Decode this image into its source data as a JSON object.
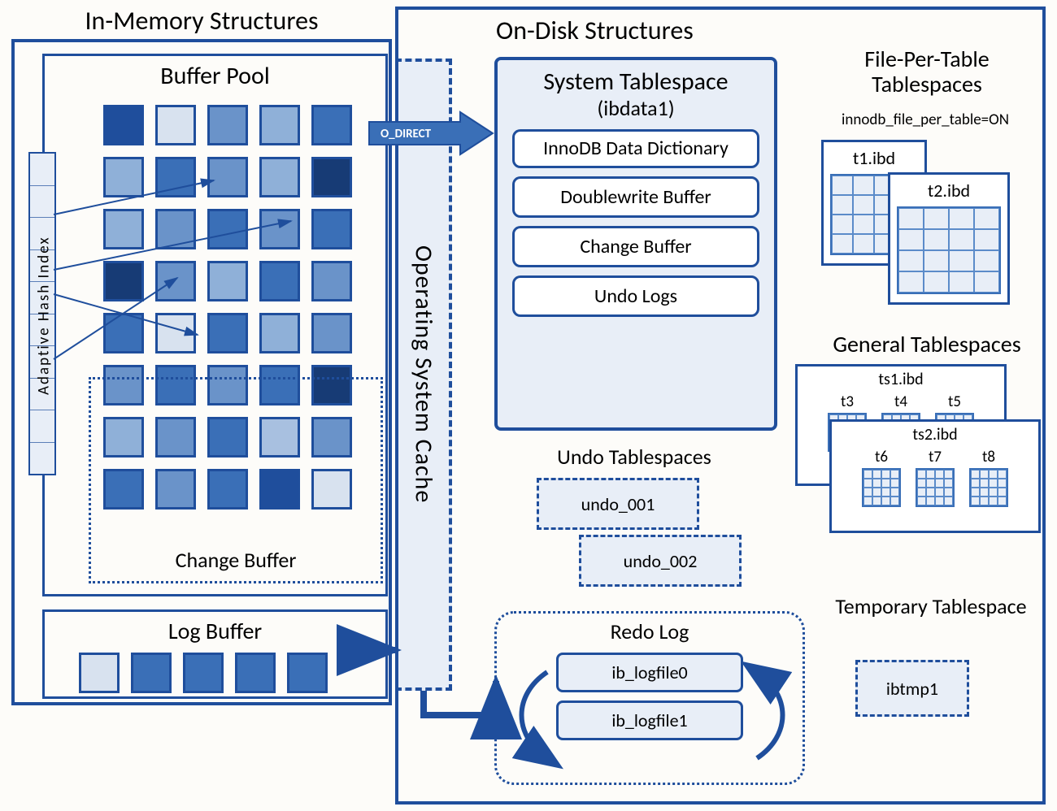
{
  "colors": {
    "border": "#1f4e9c",
    "light_fill": "#e8eef7",
    "bg": "#fdfcf9",
    "cell_variants": [
      "#d8e2ef",
      "#a8c0e0",
      "#6a93c9",
      "#3a6fb7",
      "#1f4e9c",
      "#173b75"
    ]
  },
  "in_memory": {
    "title": "In-Memory Structures",
    "buffer_pool": {
      "title": "Buffer Pool",
      "grid": [
        [
          "#1f4e9c",
          "#d8e2ef",
          "#6a93c9",
          "#8fb0d8",
          "#3a6fb7"
        ],
        [
          "#8fb0d8",
          "#3a6fb7",
          "#6a93c9",
          "#8fb0d8",
          "#173b75"
        ],
        [
          "#8fb0d8",
          "#6a93c9",
          "#3a6fb7",
          "#6a93c9",
          "#3a6fb7"
        ],
        [
          "#173b75",
          "#6a93c9",
          "#8fb0d8",
          "#3a6fb7",
          "#6a93c9"
        ],
        [
          "#3a6fb7",
          "#d8e2ef",
          "#3a6fb7",
          "#8fb0d8",
          "#6a93c9"
        ],
        [
          "#6a93c9",
          "#3a6fb7",
          "#6a93c9",
          "#3a6fb7",
          "#173b75"
        ],
        [
          "#8fb0d8",
          "#6a93c9",
          "#3a6fb7",
          "#a8c0e0",
          "#6a93c9"
        ],
        [
          "#3a6fb7",
          "#6a93c9",
          "#3a6fb7",
          "#1f4e9c",
          "#d8e2ef"
        ]
      ],
      "adaptive_hash_index": {
        "label": "Adaptive  Hash  Index",
        "segments": 10
      },
      "change_buffer": {
        "title": "Change Buffer"
      }
    },
    "log_buffer": {
      "title": "Log Buffer",
      "cells": [
        "#d8e2ef",
        "#3a6fb7",
        "#3a6fb7",
        "#3a6fb7",
        "#3a6fb7"
      ]
    }
  },
  "os_cache": {
    "label": "Operating System Cache"
  },
  "o_direct_label": "O_DIRECT",
  "on_disk": {
    "title": "On-Disk Structures",
    "system_tablespace": {
      "title": "System Tablespace",
      "subtitle": "(ibdata1)",
      "items": [
        "InnoDB Data Dictionary",
        "Doublewrite Buffer",
        "Change Buffer",
        "Undo Logs"
      ]
    },
    "undo_tablespaces": {
      "title": "Undo Tablespaces",
      "files": [
        "undo_001",
        "undo_002"
      ]
    },
    "redo_log": {
      "title": "Redo Log",
      "files": [
        "ib_logfile0",
        "ib_logfile1"
      ]
    },
    "file_per_table": {
      "title": "File-Per-Table Tablespaces",
      "subtitle": "innodb_file_per_table=ON",
      "files": [
        "t1.ibd",
        "t2.ibd"
      ]
    },
    "general_tablespaces": {
      "title": "General Tablespaces",
      "ts1": {
        "file": "ts1.ibd",
        "tables": [
          "t3",
          "t4",
          "t5"
        ]
      },
      "ts2": {
        "file": "ts2.ibd",
        "tables": [
          "t6",
          "t7",
          "t8"
        ]
      }
    },
    "temporary_tablespace": {
      "title": "Temporary Tablespace",
      "file": "ibtmp1"
    }
  }
}
